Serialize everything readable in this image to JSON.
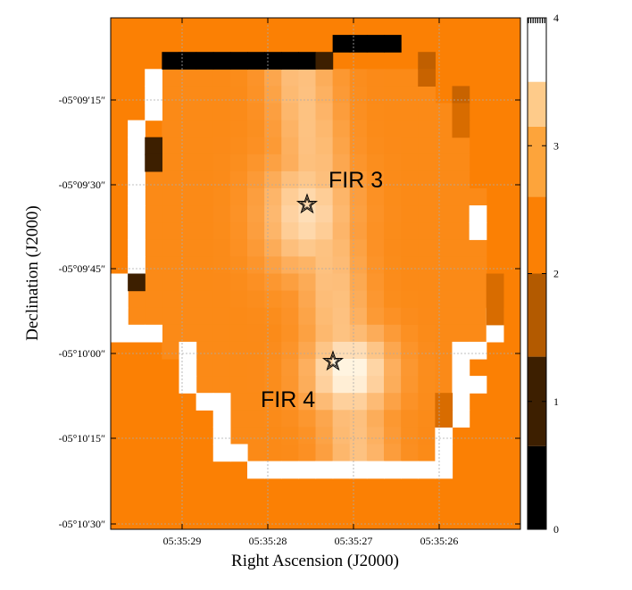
{
  "chart_data": {
    "type": "heatmap",
    "xlabel": "Right Ascension (J2000)",
    "ylabel": "Declination (J2000)",
    "x_ticks": [
      "05:35:29",
      "05:35:28",
      "05:35:27",
      "05:35:26"
    ],
    "y_ticks": [
      "-05°09′15″",
      "-05°09′30″",
      "-05°09′45″",
      "-05°10′00″",
      "-05°10′15″",
      "-05°10′30″"
    ],
    "colorbar": {
      "min": 0,
      "max": 4,
      "ticks": [
        "0",
        "1",
        "2",
        "3",
        "4"
      ]
    },
    "sources": [
      {
        "name": "FIR 3",
        "ra": "05:35:27.7",
        "dec": "-05°09′33″"
      },
      {
        "name": "FIR 4",
        "ra": "05:35:27.3",
        "dec": "-05°10′01″"
      }
    ],
    "grid": true,
    "colors": {
      "background": "#fb8004",
      "peak": "#ffffff",
      "low": "#000000"
    }
  }
}
